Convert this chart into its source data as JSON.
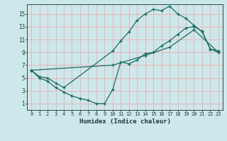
{
  "xlabel": "Humidex (Indice chaleur)",
  "bg_color": "#cde8ea",
  "grid_color": "#e8b4b4",
  "line_color": "#1a6b62",
  "xlim": [
    -0.5,
    23.5
  ],
  "ylim": [
    0,
    16.5
  ],
  "xticks": [
    0,
    1,
    2,
    3,
    4,
    5,
    6,
    7,
    8,
    9,
    10,
    11,
    12,
    13,
    14,
    15,
    16,
    17,
    18,
    19,
    20,
    21,
    22,
    23
  ],
  "yticks": [
    1,
    3,
    5,
    7,
    9,
    11,
    13,
    15
  ],
  "line1_x": [
    0,
    1,
    2,
    3,
    4,
    10,
    11,
    12,
    13,
    14,
    15,
    16,
    17,
    18,
    19,
    20,
    21,
    22,
    23
  ],
  "line1_y": [
    6.2,
    5.2,
    5.0,
    4.2,
    3.5,
    9.2,
    10.8,
    12.2,
    14.0,
    15.0,
    15.7,
    15.5,
    16.2,
    15.0,
    14.3,
    13.2,
    12.2,
    9.5,
    9.2
  ],
  "line2_x": [
    0,
    10,
    14,
    17,
    20,
    23
  ],
  "line2_y": [
    6.2,
    7.0,
    8.5,
    9.8,
    12.5,
    9.0
  ],
  "line3_x": [
    0,
    1,
    2,
    3,
    4,
    5,
    6,
    7,
    8,
    9,
    10,
    11,
    12,
    13,
    14,
    15,
    16,
    17,
    18,
    19,
    20,
    21,
    22,
    23
  ],
  "line3_y": [
    6.2,
    5.0,
    4.5,
    3.5,
    2.8,
    2.2,
    1.8,
    1.5,
    1.0,
    1.0,
    3.2,
    7.5,
    7.2,
    7.8,
    8.8,
    9.0,
    10.0,
    10.8,
    11.8,
    12.8,
    13.0,
    12.3,
    9.5,
    9.0
  ]
}
